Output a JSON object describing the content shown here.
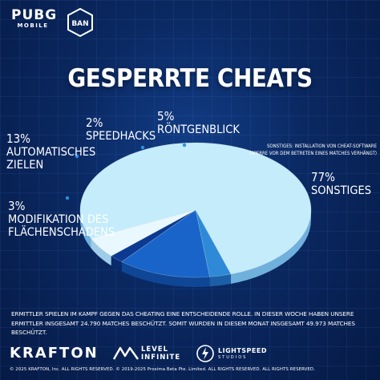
{
  "header": {
    "logo_main": "PUBG",
    "logo_sub": "MOBILE",
    "badge": "BAN"
  },
  "title": "GESPERRTE CHEATS",
  "chart_data": {
    "type": "pie",
    "title": "GESPERRTE CHEATS",
    "slices": [
      {
        "label_lines": [
          "SONSTIGES"
        ],
        "value": 77,
        "value_text": "77%",
        "color": "#c4ecfb",
        "side_color": "#6fb0dc"
      },
      {
        "label_lines": [
          "MODIFIKATION DES",
          "FLÄCHENSCHADENS"
        ],
        "value": 3,
        "value_text": "3%",
        "color": "#2e8ad6",
        "side_color": "#1c5fa6"
      },
      {
        "label_lines": [
          "AUTOMATISCHES",
          "ZIELEN"
        ],
        "value": 13,
        "value_text": "13%",
        "color": "#1864c9",
        "side_color": "#0f4696"
      },
      {
        "label_lines": [
          "SPEEDHACKS"
        ],
        "value": 2,
        "value_text": "2%",
        "color": "#0c3a92",
        "side_color": "#082a6e"
      },
      {
        "label_lines": [
          "RÖNTGENBLICK"
        ],
        "value": 5,
        "value_text": "5%",
        "color": "#e9f8fe",
        "side_color": "#9fcde8"
      }
    ],
    "annotation_lines": [
      "SONSTIGES: INSTALLATION VON CHEAT-SOFTWARE",
      "(SPERRE VOR DEM BETRETEN EINES MATCHES VERHÄNGT)"
    ]
  },
  "note": "ERMITTLER SPIELEN IM KAMPF GEGEN DAS CHEATING EINE ENTSCHEIDENDE ROLLE. IN DIESER WOCHE HABEN UNSERE ERMITTLER INSGESAMT 24.790 MATCHES BESCHÜTZT. SOMIT WURDEN IN DIESEM MONAT INSGESAMT 49.973 MATCHES BESCHÜTZT.",
  "footer": {
    "krafton": "KRAFTON",
    "level_line1": "LEVEL",
    "level_line2": "INFINITE",
    "lightspeed_line1": "LIGHTSPEED",
    "lightspeed_line2": "STUDIOS",
    "copyright": "© 2025 KRAFTON, Inc. ALL RIGHTS RESERVED.     © 2019-2025 Proxima Beta Pte. Limited. ALL RIGHTS RESERVED.     ALL RIGHTS RESERVED."
  }
}
